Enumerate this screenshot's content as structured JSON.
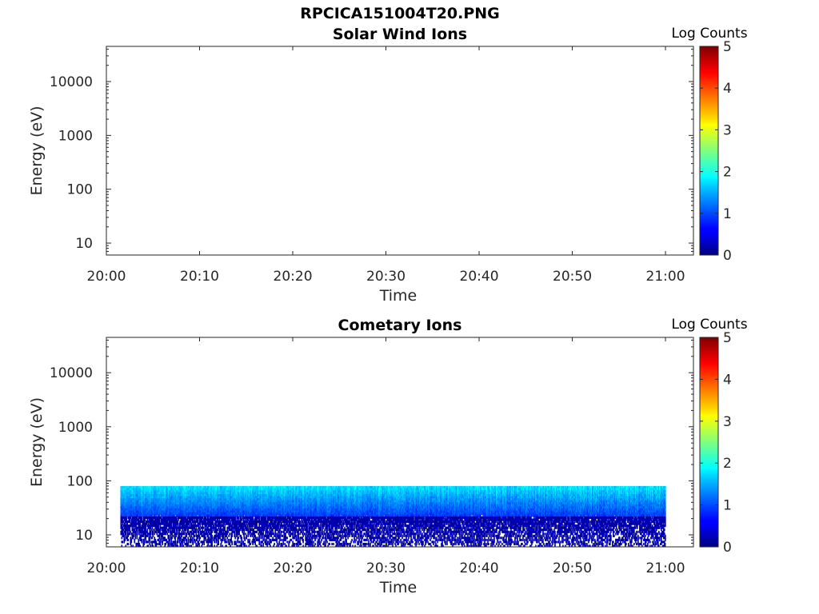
{
  "figure": {
    "filename": "RPCICA151004T20.PNG"
  },
  "colorbar_ticks": [
    "0",
    "1",
    "2",
    "3",
    "4",
    "5"
  ],
  "chart_data": [
    {
      "type": "heatmap",
      "title": "Solar Wind Ions",
      "xlabel": "Time",
      "ylabel": "Energy (eV)",
      "x_ticks": [
        "20:00",
        "20:10",
        "20:20",
        "20:30",
        "20:40",
        "20:50",
        "21:00"
      ],
      "y_ticks": [
        "10",
        "100",
        "1000",
        "10000"
      ],
      "y_scale": "log",
      "ylim": [
        6,
        45000
      ],
      "xlim": [
        "20:00",
        "21:03"
      ],
      "colorbar": {
        "label": "Log Counts",
        "range": [
          0,
          5
        ],
        "colormap": "jet"
      },
      "data": {
        "t_start": "",
        "t_end": "",
        "e_min": null,
        "e_max": null,
        "level": null
      }
    },
    {
      "type": "heatmap",
      "title": "Cometary Ions",
      "xlabel": "Time",
      "ylabel": "Energy (eV)",
      "x_ticks": [
        "20:00",
        "20:10",
        "20:20",
        "20:30",
        "20:40",
        "20:50",
        "21:00"
      ],
      "y_ticks": [
        "10",
        "100",
        "1000",
        "10000"
      ],
      "y_scale": "log",
      "ylim": [
        6,
        45000
      ],
      "xlim": [
        "20:00",
        "21:03"
      ],
      "colorbar": {
        "label": "Log Counts",
        "range": [
          0,
          5
        ],
        "colormap": "jet"
      },
      "data": {
        "t_start": "20:01.5",
        "t_end": "21:00",
        "e_min": 6,
        "e_max": 80,
        "level": 1
      }
    }
  ]
}
